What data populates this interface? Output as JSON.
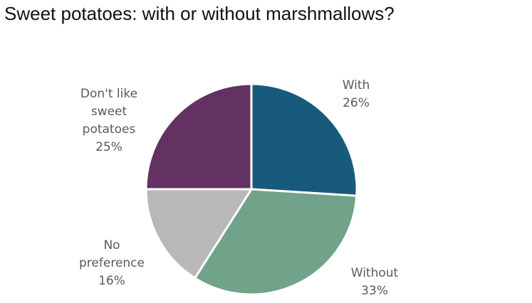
{
  "chart_data": {
    "type": "pie",
    "title": "Sweet potatoes: with or without marshmallows?",
    "start_angle_deg": 0,
    "direction": "clockwise",
    "slices": [
      {
        "label_lines": [
          "With",
          "26%"
        ],
        "value": 26,
        "color": "#185a7b"
      },
      {
        "label_lines": [
          "Without",
          "33%"
        ],
        "value": 33,
        "color": "#70a389"
      },
      {
        "label_lines": [
          "No",
          "preference",
          "16%"
        ],
        "value": 16,
        "color": "#b8b8b8"
      },
      {
        "label_lines": [
          "Don't like",
          "sweet",
          "potatoes",
          "25%"
        ],
        "value": 25,
        "color": "#643262"
      }
    ],
    "legend": "none",
    "grid": false
  }
}
